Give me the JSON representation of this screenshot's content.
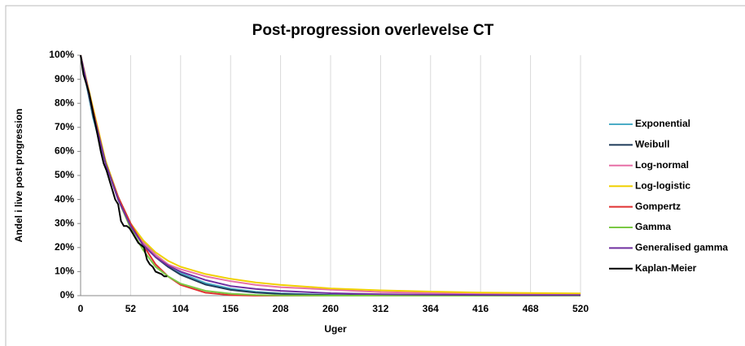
{
  "chart_data": {
    "type": "line",
    "title": "Post-progression overlevelse CT",
    "xlabel": "Uger",
    "ylabel": "Andel i live post progression",
    "xlim": [
      0,
      520
    ],
    "xticks": [
      0,
      52,
      104,
      156,
      208,
      260,
      312,
      364,
      416,
      468,
      520
    ],
    "ylim": [
      0,
      100
    ],
    "yticks": [
      {
        "value": 0,
        "label": "0%"
      },
      {
        "value": 10,
        "label": "10%"
      },
      {
        "value": 20,
        "label": "20%"
      },
      {
        "value": 30,
        "label": "30%"
      },
      {
        "value": 40,
        "label": "40%"
      },
      {
        "value": 50,
        "label": "50%"
      },
      {
        "value": 60,
        "label": "60%"
      },
      {
        "value": 70,
        "label": "70%"
      },
      {
        "value": 80,
        "label": "80%"
      },
      {
        "value": 90,
        "label": "90%"
      },
      {
        "value": 100,
        "label": "100%"
      }
    ],
    "xgrid": true,
    "legend": "right",
    "series": [
      {
        "name": "Exponential",
        "color": "#4bacc6",
        "x": [
          0,
          13,
          26,
          39,
          52,
          65,
          78,
          91,
          104,
          130,
          156,
          182,
          208,
          260,
          312,
          364,
          416,
          468,
          520
        ],
        "values": [
          100,
          74,
          55,
          41,
          30,
          23,
          17,
          13,
          9.4,
          5.2,
          2.9,
          1.6,
          0.9,
          0.3,
          0.1,
          0,
          0,
          0,
          0
        ]
      },
      {
        "name": "Weibull",
        "color": "#1f3b5a",
        "x": [
          0,
          13,
          26,
          39,
          52,
          65,
          78,
          91,
          104,
          130,
          156,
          182,
          208,
          260,
          312,
          364,
          416,
          468,
          520
        ],
        "values": [
          100,
          75,
          56,
          41,
          30,
          22,
          16,
          12,
          8.7,
          4.6,
          2.4,
          1.3,
          0.7,
          0.2,
          0.1,
          0,
          0,
          0,
          0
        ]
      },
      {
        "name": "Log-normal",
        "color": "#e76fa6",
        "x": [
          0,
          13,
          26,
          39,
          52,
          65,
          78,
          91,
          104,
          130,
          156,
          182,
          208,
          260,
          312,
          364,
          416,
          468,
          520
        ],
        "values": [
          100,
          77,
          55,
          40,
          30,
          22,
          17,
          13,
          11,
          8,
          6,
          4.5,
          3.5,
          2.5,
          1.5,
          1.1,
          0.8,
          0.6,
          0.5
        ]
      },
      {
        "name": "Log-logistic",
        "color": "#f0d000",
        "x": [
          0,
          13,
          26,
          39,
          52,
          65,
          78,
          91,
          104,
          130,
          156,
          182,
          208,
          260,
          312,
          364,
          416,
          468,
          520
        ],
        "values": [
          100,
          78,
          56,
          41,
          30,
          23,
          18,
          14.5,
          12,
          9,
          7,
          5.5,
          4.5,
          3,
          2.2,
          1.7,
          1.3,
          1.1,
          0.9
        ]
      },
      {
        "name": "Gompertz",
        "color": "#e03030",
        "x": [
          0,
          13,
          26,
          39,
          52,
          65,
          78,
          91,
          104,
          130,
          156,
          182,
          208,
          260,
          312,
          364,
          416,
          468,
          520
        ],
        "values": [
          100,
          77,
          55,
          41,
          30,
          21,
          13,
          8,
          4.5,
          1.2,
          0.2,
          0,
          0,
          0,
          0,
          0,
          0,
          0,
          0
        ]
      },
      {
        "name": "Gamma",
        "color": "#7ac943",
        "x": [
          0,
          13,
          26,
          39,
          52,
          65,
          78,
          91,
          104,
          130,
          156,
          182,
          208,
          260,
          312,
          364,
          416,
          468,
          520
        ],
        "values": [
          100,
          76,
          55,
          40,
          28,
          19,
          12,
          8,
          5,
          2,
          0.8,
          0.3,
          0.1,
          0,
          0,
          0,
          0,
          0,
          0
        ]
      },
      {
        "name": "Generalised gamma",
        "color": "#7030a0",
        "x": [
          0,
          13,
          26,
          39,
          52,
          65,
          78,
          91,
          104,
          130,
          156,
          182,
          208,
          260,
          312,
          364,
          416,
          468,
          520
        ],
        "values": [
          100,
          76,
          55,
          40,
          29,
          21,
          16,
          12.5,
          10,
          6.5,
          4,
          2.8,
          2,
          1,
          0.6,
          0.4,
          0.3,
          0.2,
          0.2
        ]
      },
      {
        "name": "Kaplan-Meier",
        "color": "#000000",
        "x": [
          0,
          3,
          6,
          9,
          12,
          15,
          18,
          21,
          24,
          27,
          30,
          33,
          36,
          39,
          42,
          45,
          48,
          51,
          54,
          57,
          60,
          63,
          66,
          69,
          72,
          75,
          78,
          81,
          84,
          87,
          90
        ],
        "values": [
          100,
          92,
          88,
          84,
          78,
          72,
          66,
          60,
          55,
          52,
          48,
          44,
          40,
          38,
          31,
          29,
          29,
          28,
          26,
          24,
          22,
          21,
          20,
          15,
          13,
          12,
          10,
          9.5,
          9,
          8,
          8
        ]
      }
    ]
  }
}
